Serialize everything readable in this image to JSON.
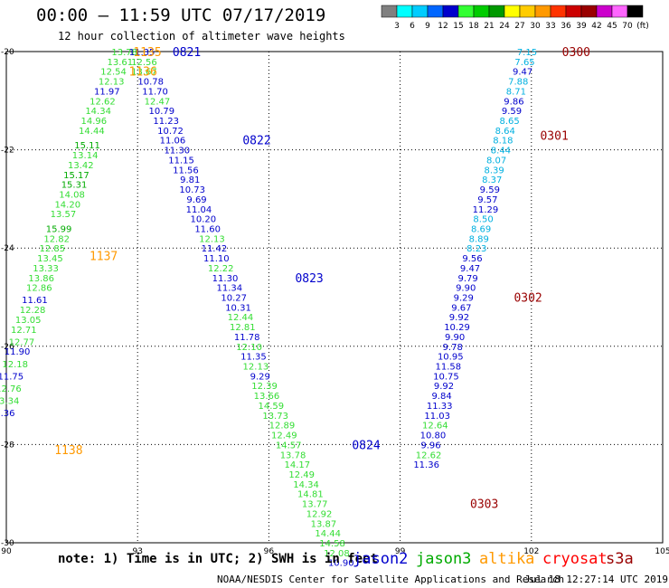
{
  "title": "00:00 – 11:59 UTC 07/17/2019",
  "subtitle": "12 hour collection of altimeter wave heights",
  "note": "note: 1) Time is in UTC; 2) SWH is in feet",
  "credit": "NOAA/NESDIS Center for Satellite Applications and Research",
  "credit_date": "Jul 18 12:27:14 UTC 2019",
  "satellites": [
    {
      "name": "jason2",
      "color": "#0000cc"
    },
    {
      "name": "jason3",
      "color": "#00aa00"
    },
    {
      "name": "altika",
      "color": "#ff9900"
    },
    {
      "name": "cryosat",
      "color": "#ff0000"
    },
    {
      "name": "s3a",
      "color": "#990000"
    }
  ],
  "color_scale": {
    "labels": [
      "3",
      "6",
      "9",
      "12",
      "15",
      "18",
      "21",
      "24",
      "27",
      "30",
      "33",
      "36",
      "39",
      "42",
      "45",
      "70",
      "(ft)"
    ],
    "colors": [
      "#808080",
      "#00ffff",
      "#00ccff",
      "#0066ff",
      "#0000cc",
      "#33ff33",
      "#00cc00",
      "#009900",
      "#ffff00",
      "#ffcc00",
      "#ff9900",
      "#ff3300",
      "#cc0000",
      "#990000",
      "#cc00cc",
      "#ff66ff",
      "#000000"
    ]
  },
  "chart_data": {
    "type": "scatter",
    "xlim": [
      90,
      105
    ],
    "ylim": [
      -30,
      -20
    ],
    "xticks": [
      90,
      93,
      96,
      99,
      102,
      105
    ],
    "xtick_labels": [
      "90",
      "93",
      "96",
      "99",
      "102",
      "105"
    ],
    "yticks": [
      -20,
      -22,
      -24,
      -26,
      -28,
      -30
    ],
    "ytick_labels": [
      "-20",
      "-22",
      "-24",
      "-26",
      "-28",
      "-30"
    ],
    "grid": true,
    "pass_labels": [
      {
        "text": "0821",
        "x": 93.8,
        "y": -20.0,
        "color": "#0000cc"
      },
      {
        "text": "1135",
        "x": 92.9,
        "y": -20.0,
        "color": "#ff9900"
      },
      {
        "text": "1136",
        "x": 92.8,
        "y": -20.4,
        "color": "#ff9900"
      },
      {
        "text": "0822",
        "x": 95.4,
        "y": -21.8,
        "color": "#0000cc"
      },
      {
        "text": "1137",
        "x": 91.9,
        "y": -24.15,
        "color": "#ff9900"
      },
      {
        "text": "0823",
        "x": 96.6,
        "y": -24.6,
        "color": "#0000cc"
      },
      {
        "text": "1138",
        "x": 91.1,
        "y": -28.1,
        "color": "#ff9900"
      },
      {
        "text": "0824",
        "x": 97.9,
        "y": -28.0,
        "color": "#0000cc"
      },
      {
        "text": "0300",
        "x": 102.7,
        "y": -20.0,
        "color": "#990000"
      },
      {
        "text": "0301",
        "x": 102.2,
        "y": -21.7,
        "color": "#990000"
      },
      {
        "text": "0302",
        "x": 101.6,
        "y": -25.0,
        "color": "#990000"
      },
      {
        "text": "0303",
        "x": 100.6,
        "y": -29.2,
        "color": "#990000"
      }
    ],
    "series": [
      {
        "name": "1135-1138 track",
        "points": [
          {
            "x": 92.7,
            "y": -20.0,
            "v": 13.78
          },
          {
            "x": 92.6,
            "y": -20.2,
            "v": 13.61
          },
          {
            "x": 92.45,
            "y": -20.4,
            "v": 12.54
          },
          {
            "x": 92.4,
            "y": -20.6,
            "v": 12.13
          },
          {
            "x": 92.3,
            "y": -20.8,
            "v": 11.97
          },
          {
            "x": 92.2,
            "y": -21.0,
            "v": 12.62
          },
          {
            "x": 92.1,
            "y": -21.2,
            "v": 14.34
          },
          {
            "x": 92.0,
            "y": -21.4,
            "v": 14.96
          },
          {
            "x": 91.95,
            "y": -21.6,
            "v": 14.44
          },
          {
            "x": 91.85,
            "y": -21.9,
            "v": 15.11
          },
          {
            "x": 91.8,
            "y": -22.1,
            "v": 13.14
          },
          {
            "x": 91.7,
            "y": -22.3,
            "v": 13.42
          },
          {
            "x": 91.6,
            "y": -22.5,
            "v": 15.17
          },
          {
            "x": 91.55,
            "y": -22.7,
            "v": 15.31
          },
          {
            "x": 91.5,
            "y": -22.9,
            "v": 14.08
          },
          {
            "x": 91.4,
            "y": -23.1,
            "v": 14.2
          },
          {
            "x": 91.3,
            "y": -23.3,
            "v": 13.57
          },
          {
            "x": 91.2,
            "y": -23.6,
            "v": 15.99
          },
          {
            "x": 91.15,
            "y": -23.8,
            "v": 12.82
          },
          {
            "x": 91.05,
            "y": -24.0,
            "v": 12.85
          },
          {
            "x": 91.0,
            "y": -24.2,
            "v": 13.45
          },
          {
            "x": 90.9,
            "y": -24.4,
            "v": 13.33
          },
          {
            "x": 90.8,
            "y": -24.6,
            "v": 13.86
          },
          {
            "x": 90.75,
            "y": -24.8,
            "v": 12.86
          },
          {
            "x": 90.65,
            "y": -25.05,
            "v": 11.61
          },
          {
            "x": 90.6,
            "y": -25.25,
            "v": 12.28
          },
          {
            "x": 90.5,
            "y": -25.45,
            "v": 13.05
          },
          {
            "x": 90.4,
            "y": -25.65,
            "v": 12.71
          },
          {
            "x": 90.35,
            "y": -25.9,
            "v": 12.77
          },
          {
            "x": 90.25,
            "y": -26.1,
            "v": 11.9
          },
          {
            "x": 90.2,
            "y": -26.35,
            "v": 12.18
          },
          {
            "x": 90.1,
            "y": -26.6,
            "v": 11.75
          },
          {
            "x": 90.05,
            "y": -26.85,
            "v": 12.76
          },
          {
            "x": 90.0,
            "y": -27.1,
            "v": 13.34
          },
          {
            "x": 89.9,
            "y": -27.35,
            "v": 11.36
          }
        ]
      },
      {
        "name": "0821-0824 track",
        "points": [
          {
            "x": 93.1,
            "y": -20.0,
            "v": 11.35
          },
          {
            "x": 93.15,
            "y": -20.2,
            "v": 12.56
          },
          {
            "x": 93.15,
            "y": -20.4,
            "v": 13.67
          },
          {
            "x": 93.3,
            "y": -20.6,
            "v": 10.78
          },
          {
            "x": 93.4,
            "y": -20.8,
            "v": 11.7
          },
          {
            "x": 93.45,
            "y": -21.0,
            "v": 12.47
          },
          {
            "x": 93.55,
            "y": -21.2,
            "v": 10.79
          },
          {
            "x": 93.65,
            "y": -21.4,
            "v": 11.23
          },
          {
            "x": 93.75,
            "y": -21.6,
            "v": 10.72
          },
          {
            "x": 93.8,
            "y": -21.8,
            "v": 11.06
          },
          {
            "x": 93.9,
            "y": -22.0,
            "v": 11.3
          },
          {
            "x": 94.0,
            "y": -22.2,
            "v": 11.15
          },
          {
            "x": 94.1,
            "y": -22.4,
            "v": 11.56
          },
          {
            "x": 94.2,
            "y": -22.6,
            "v": 9.81
          },
          {
            "x": 94.25,
            "y": -22.8,
            "v": 10.73
          },
          {
            "x": 94.35,
            "y": -23.0,
            "v": 9.69
          },
          {
            "x": 94.4,
            "y": -23.2,
            "v": 11.04
          },
          {
            "x": 94.5,
            "y": -23.4,
            "v": 10.2
          },
          {
            "x": 94.6,
            "y": -23.6,
            "v": 11.6
          },
          {
            "x": 94.7,
            "y": -23.8,
            "v": 12.13
          },
          {
            "x": 94.75,
            "y": -24.0,
            "v": 11.42
          },
          {
            "x": 94.8,
            "y": -24.2,
            "v": 11.1
          },
          {
            "x": 94.9,
            "y": -24.4,
            "v": 12.22
          },
          {
            "x": 95.0,
            "y": -24.6,
            "v": 11.3
          },
          {
            "x": 95.1,
            "y": -24.8,
            "v": 11.34
          },
          {
            "x": 95.2,
            "y": -25.0,
            "v": 10.27
          },
          {
            "x": 95.3,
            "y": -25.2,
            "v": 10.31
          },
          {
            "x": 95.35,
            "y": -25.4,
            "v": 12.44
          },
          {
            "x": 95.4,
            "y": -25.6,
            "v": 12.81
          },
          {
            "x": 95.5,
            "y": -25.8,
            "v": 11.78
          },
          {
            "x": 95.55,
            "y": -26.0,
            "v": 12.1
          },
          {
            "x": 95.65,
            "y": -26.2,
            "v": 11.35
          },
          {
            "x": 95.7,
            "y": -26.4,
            "v": 12.13
          },
          {
            "x": 95.8,
            "y": -26.6,
            "v": 9.29
          },
          {
            "x": 95.9,
            "y": -26.8,
            "v": 12.39
          },
          {
            "x": 95.95,
            "y": -27.0,
            "v": 13.66
          },
          {
            "x": 96.05,
            "y": -27.2,
            "v": 14.59
          },
          {
            "x": 96.15,
            "y": -27.4,
            "v": 13.73
          },
          {
            "x": 96.3,
            "y": -27.6,
            "v": 12.89
          },
          {
            "x": 96.35,
            "y": -27.8,
            "v": 12.49
          },
          {
            "x": 96.45,
            "y": -28.0,
            "v": 14.57
          },
          {
            "x": 96.55,
            "y": -28.2,
            "v": 13.78
          },
          {
            "x": 96.65,
            "y": -28.4,
            "v": 14.17
          },
          {
            "x": 96.75,
            "y": -28.6,
            "v": 12.49
          },
          {
            "x": 96.85,
            "y": -28.8,
            "v": 14.34
          },
          {
            "x": 96.95,
            "y": -29.0,
            "v": 14.81
          },
          {
            "x": 97.05,
            "y": -29.2,
            "v": 13.77
          },
          {
            "x": 97.15,
            "y": -29.4,
            "v": 12.92
          },
          {
            "x": 97.25,
            "y": -29.6,
            "v": 13.87
          },
          {
            "x": 97.35,
            "y": -29.8,
            "v": 14.44
          },
          {
            "x": 97.45,
            "y": -30.0,
            "v": 14.58
          },
          {
            "x": 97.55,
            "y": -30.2,
            "v": 12.08
          },
          {
            "x": 97.65,
            "y": -30.4,
            "v": 10.9
          }
        ]
      },
      {
        "name": "0300-0303 track",
        "points": [
          {
            "x": 101.9,
            "y": -20.0,
            "v": 7.15
          },
          {
            "x": 101.85,
            "y": -20.2,
            "v": 7.65
          },
          {
            "x": 101.8,
            "y": -20.4,
            "v": 9.47
          },
          {
            "x": 101.7,
            "y": -20.6,
            "v": 7.88
          },
          {
            "x": 101.65,
            "y": -20.8,
            "v": 8.71
          },
          {
            "x": 101.6,
            "y": -21.0,
            "v": 9.86
          },
          {
            "x": 101.55,
            "y": -21.2,
            "v": 9.59
          },
          {
            "x": 101.5,
            "y": -21.4,
            "v": 8.65
          },
          {
            "x": 101.4,
            "y": -21.6,
            "v": 8.64
          },
          {
            "x": 101.35,
            "y": -21.8,
            "v": 8.18
          },
          {
            "x": 101.3,
            "y": -22.0,
            "v": 8.44
          },
          {
            "x": 101.2,
            "y": -22.2,
            "v": 8.07
          },
          {
            "x": 101.15,
            "y": -22.4,
            "v": 8.39
          },
          {
            "x": 101.1,
            "y": -22.6,
            "v": 8.37
          },
          {
            "x": 101.05,
            "y": -22.8,
            "v": 9.59
          },
          {
            "x": 101.0,
            "y": -23.0,
            "v": 9.57
          },
          {
            "x": 100.95,
            "y": -23.2,
            "v": 11.29
          },
          {
            "x": 100.9,
            "y": -23.4,
            "v": 8.5
          },
          {
            "x": 100.85,
            "y": -23.6,
            "v": 8.69
          },
          {
            "x": 100.8,
            "y": -23.8,
            "v": 8.89
          },
          {
            "x": 100.75,
            "y": -24.0,
            "v": 8.23
          },
          {
            "x": 100.65,
            "y": -24.2,
            "v": 9.56
          },
          {
            "x": 100.6,
            "y": -24.4,
            "v": 9.47
          },
          {
            "x": 100.55,
            "y": -24.6,
            "v": 9.79
          },
          {
            "x": 100.5,
            "y": -24.8,
            "v": 9.9
          },
          {
            "x": 100.45,
            "y": -25.0,
            "v": 9.29
          },
          {
            "x": 100.4,
            "y": -25.2,
            "v": 9.67
          },
          {
            "x": 100.35,
            "y": -25.4,
            "v": 9.92
          },
          {
            "x": 100.3,
            "y": -25.6,
            "v": 10.29
          },
          {
            "x": 100.25,
            "y": -25.8,
            "v": 9.9
          },
          {
            "x": 100.2,
            "y": -26.0,
            "v": 9.78
          },
          {
            "x": 100.15,
            "y": -26.2,
            "v": 10.95
          },
          {
            "x": 100.1,
            "y": -26.4,
            "v": 11.58
          },
          {
            "x": 100.05,
            "y": -26.6,
            "v": 10.75
          },
          {
            "x": 100.0,
            "y": -26.8,
            "v": 9.92
          },
          {
            "x": 99.95,
            "y": -27.0,
            "v": 9.84
          },
          {
            "x": 99.9,
            "y": -27.2,
            "v": 11.33
          },
          {
            "x": 99.85,
            "y": -27.4,
            "v": 11.03
          },
          {
            "x": 99.8,
            "y": -27.6,
            "v": 12.64
          },
          {
            "x": 99.75,
            "y": -27.8,
            "v": 10.8
          },
          {
            "x": 99.7,
            "y": -28.0,
            "v": 9.96
          },
          {
            "x": 99.65,
            "y": -28.2,
            "v": 12.62
          },
          {
            "x": 99.6,
            "y": -28.4,
            "v": 11.36
          }
        ]
      }
    ]
  }
}
